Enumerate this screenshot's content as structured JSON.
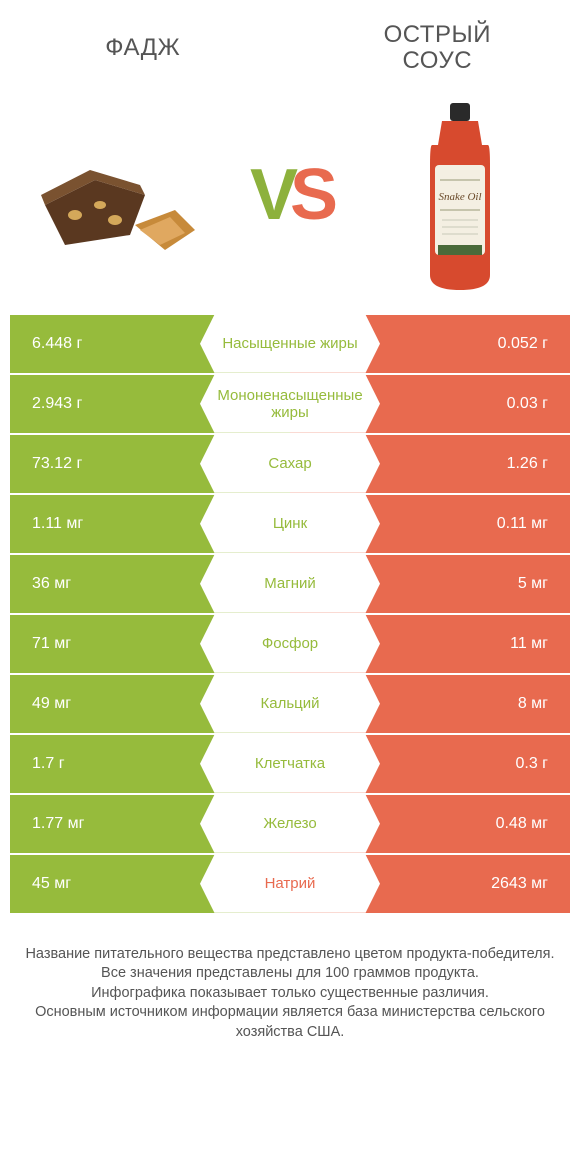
{
  "colors": {
    "green": "#96bb3c",
    "orange": "#e86a4f",
    "text": "#555555",
    "white": "#ffffff"
  },
  "header": {
    "left_title": "ФАДЖ",
    "right_title": "ОСТРЫЙ\nСОУС",
    "vs_v": "V",
    "vs_s": "S"
  },
  "table": {
    "type": "comparison-table",
    "left_winner_color": "#96bb3c",
    "right_winner_color": "#e86a4f",
    "rows": [
      {
        "nutrient": "Насыщенные жиры",
        "left": "6.448 г",
        "right": "0.052 г",
        "winner": "left"
      },
      {
        "nutrient": "Мононенасыщенные жиры",
        "left": "2.943 г",
        "right": "0.03 г",
        "winner": "left"
      },
      {
        "nutrient": "Сахар",
        "left": "73.12 г",
        "right": "1.26 г",
        "winner": "left"
      },
      {
        "nutrient": "Цинк",
        "left": "1.11 мг",
        "right": "0.11 мг",
        "winner": "left"
      },
      {
        "nutrient": "Магний",
        "left": "36 мг",
        "right": "5 мг",
        "winner": "left"
      },
      {
        "nutrient": "Фосфор",
        "left": "71 мг",
        "right": "11 мг",
        "winner": "left"
      },
      {
        "nutrient": "Кальций",
        "left": "49 мг",
        "right": "8 мг",
        "winner": "left"
      },
      {
        "nutrient": "Клетчатка",
        "left": "1.7 г",
        "right": "0.3 г",
        "winner": "left"
      },
      {
        "nutrient": "Железо",
        "left": "1.77 мг",
        "right": "0.48 мг",
        "winner": "left"
      },
      {
        "nutrient": "Натрий",
        "left": "45 мг",
        "right": "2643 мг",
        "winner": "right"
      }
    ]
  },
  "footer": {
    "line1": "Название питательного вещества представлено цветом продукта-победителя.",
    "line2": "Все значения представлены для 100 граммов продукта.",
    "line3": "Инфографика показывает только существенные различия.",
    "line4": "Основным источником информации является база министерства сельского хозяйства США."
  }
}
